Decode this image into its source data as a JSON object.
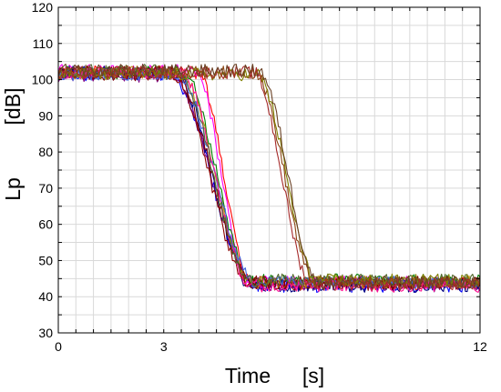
{
  "chart_data": {
    "type": "line",
    "xlabel": "Time",
    "xunit": "[s]",
    "ylabel": "Lp",
    "yunit": "[dB]",
    "xlim": [
      0,
      12
    ],
    "ylim": [
      30,
      120
    ],
    "xticks": [
      {
        "value": 0,
        "label": "0"
      },
      {
        "value": 3,
        "label": "3"
      },
      {
        "value": 12,
        "label": "12"
      }
    ],
    "yticks": [
      30,
      40,
      50,
      60,
      70,
      80,
      90,
      100,
      110,
      120
    ],
    "grid": true,
    "noise_db": 1.8,
    "series": [
      {
        "color": "#ff0000",
        "start": 102.0,
        "end": 43.5,
        "drop_start": 3.95,
        "drop_end": 5.5
      },
      {
        "color": "#0000ff",
        "start": 101.5,
        "end": 43.0,
        "drop_start": 3.15,
        "drop_end": 5.6
      },
      {
        "color": "#ff00ff",
        "start": 102.5,
        "end": 44.0,
        "drop_start": 3.9,
        "drop_end": 5.4
      },
      {
        "color": "#008000",
        "start": 102.0,
        "end": 44.5,
        "drop_start": 3.55,
        "drop_end": 5.5
      },
      {
        "color": "#800080",
        "start": 101.0,
        "end": 43.5,
        "drop_start": 3.2,
        "drop_end": 5.6
      },
      {
        "color": "#000080",
        "start": 102.0,
        "end": 43.0,
        "drop_start": 3.3,
        "drop_end": 5.5
      },
      {
        "color": "#800000",
        "start": 101.5,
        "end": 44.0,
        "drop_start": 3.25,
        "drop_end": 5.55
      },
      {
        "color": "#b8860b",
        "start": 102.0,
        "end": 44.0,
        "drop_start": 3.45,
        "drop_end": 5.5
      },
      {
        "color": "#8b0000",
        "start": 102.0,
        "end": 43.5,
        "drop_start": 3.2,
        "drop_end": 5.45
      },
      {
        "color": "#4169e1",
        "start": 101.5,
        "end": 44.0,
        "drop_start": 3.35,
        "drop_end": 5.6
      },
      {
        "color": "#ff1493",
        "start": 102.0,
        "end": 43.0,
        "drop_start": 3.5,
        "drop_end": 5.5
      },
      {
        "color": "#556b2f",
        "start": 102.5,
        "end": 44.5,
        "drop_start": 3.4,
        "drop_end": 5.45
      },
      {
        "color": "#8b4513",
        "start": 102.0,
        "end": 44.0,
        "drop_start": 5.6,
        "drop_end": 7.3
      },
      {
        "color": "#808000",
        "start": 101.5,
        "end": 44.5,
        "drop_start": 5.65,
        "drop_end": 7.35
      },
      {
        "color": "#a52a2a",
        "start": 102.0,
        "end": 43.5,
        "drop_start": 5.55,
        "drop_end": 7.2
      },
      {
        "color": "#6b4226",
        "start": 102.5,
        "end": 44.0,
        "drop_start": 5.7,
        "drop_end": 7.4
      }
    ]
  }
}
